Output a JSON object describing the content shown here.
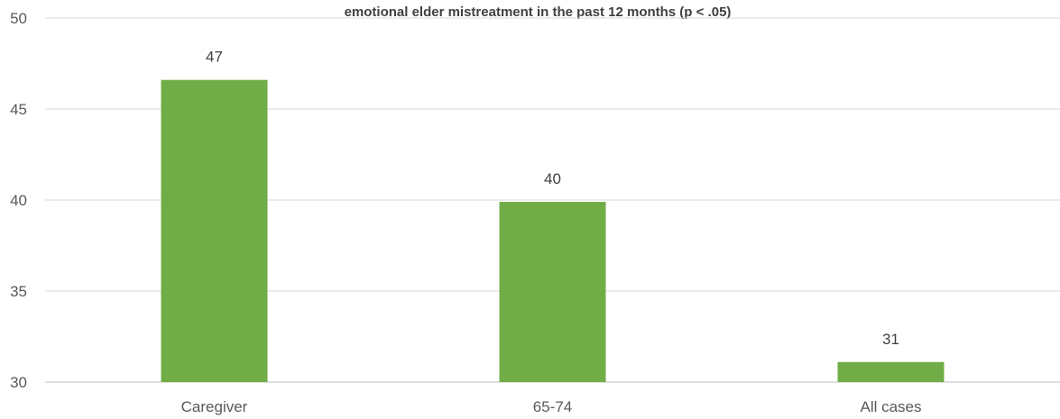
{
  "chart_data": {
    "type": "bar",
    "title": "emotional elder mistreatment in the past 12 months (p < .05)",
    "xlabel": "",
    "ylabel": "",
    "categories": [
      "Caregiver",
      "65-74",
      "All cases"
    ],
    "values": [
      46.6,
      39.9,
      31.1
    ],
    "data_labels": [
      "47",
      "40",
      "31"
    ],
    "ylim": [
      30,
      50
    ],
    "yticks": [
      30,
      35,
      40,
      45,
      50
    ],
    "grid": true,
    "legend": "none",
    "bar_color": "#70ad47"
  }
}
